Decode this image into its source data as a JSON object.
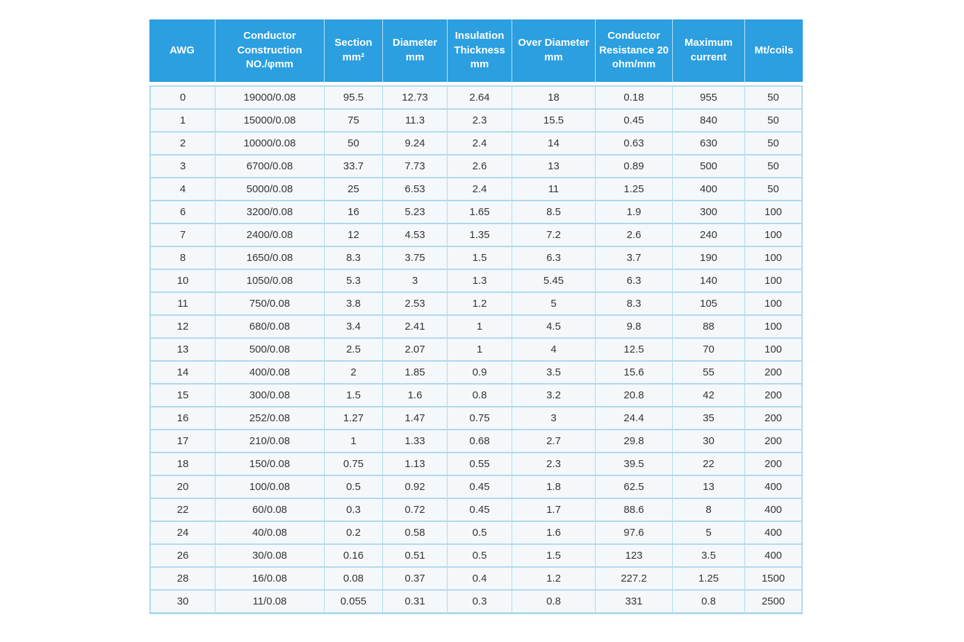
{
  "chart_data": {
    "type": "table",
    "columns": [
      "AWG",
      "Conductor\nConstruction\nNO./φmm",
      "Section\nmm²",
      "Diameter\nmm",
      "Insulation\nThickness\nmm",
      "Over Diameter\nmm",
      "Conductor\nResistance 20\nohm/mm",
      "Maximum\ncurrent",
      "Mt/coils"
    ],
    "rows": [
      [
        "0",
        "19000/0.08",
        "95.5",
        "12.73",
        "2.64",
        "18",
        "0.18",
        "955",
        "50"
      ],
      [
        "1",
        "15000/0.08",
        "75",
        "11.3",
        "2.3",
        "15.5",
        "0.45",
        "840",
        "50"
      ],
      [
        "2",
        "10000/0.08",
        "50",
        "9.24",
        "2.4",
        "14",
        "0.63",
        "630",
        "50"
      ],
      [
        "3",
        "6700/0.08",
        "33.7",
        "7.73",
        "2.6",
        "13",
        "0.89",
        "500",
        "50"
      ],
      [
        "4",
        "5000/0.08",
        "25",
        "6.53",
        "2.4",
        "11",
        "1.25",
        "400",
        "50"
      ],
      [
        "6",
        "3200/0.08",
        "16",
        "5.23",
        "1.65",
        "8.5",
        "1.9",
        "300",
        "100"
      ],
      [
        "7",
        "2400/0.08",
        "12",
        "4.53",
        "1.35",
        "7.2",
        "2.6",
        "240",
        "100"
      ],
      [
        "8",
        "1650/0.08",
        "8.3",
        "3.75",
        "1.5",
        "6.3",
        "3.7",
        "190",
        "100"
      ],
      [
        "10",
        "1050/0.08",
        "5.3",
        "3",
        "1.3",
        "5.45",
        "6.3",
        "140",
        "100"
      ],
      [
        "11",
        "750/0.08",
        "3.8",
        "2.53",
        "1.2",
        "5",
        "8.3",
        "105",
        "100"
      ],
      [
        "12",
        "680/0.08",
        "3.4",
        "2.41",
        "1",
        "4.5",
        "9.8",
        "88",
        "100"
      ],
      [
        "13",
        "500/0.08",
        "2.5",
        "2.07",
        "1",
        "4",
        "12.5",
        "70",
        "100"
      ],
      [
        "14",
        "400/0.08",
        "2",
        "1.85",
        "0.9",
        "3.5",
        "15.6",
        "55",
        "200"
      ],
      [
        "15",
        "300/0.08",
        "1.5",
        "1.6",
        "0.8",
        "3.2",
        "20.8",
        "42",
        "200"
      ],
      [
        "16",
        "252/0.08",
        "1.27",
        "1.47",
        "0.75",
        "3",
        "24.4",
        "35",
        "200"
      ],
      [
        "17",
        "210/0.08",
        "1",
        "1.33",
        "0.68",
        "2.7",
        "29.8",
        "30",
        "200"
      ],
      [
        "18",
        "150/0.08",
        "0.75",
        "1.13",
        "0.55",
        "2.3",
        "39.5",
        "22",
        "200"
      ],
      [
        "20",
        "100/0.08",
        "0.5",
        "0.92",
        "0.45",
        "1.8",
        "62.5",
        "13",
        "400"
      ],
      [
        "22",
        "60/0.08",
        "0.3",
        "0.72",
        "0.45",
        "1.7",
        "88.6",
        "8",
        "400"
      ],
      [
        "24",
        "40/0.08",
        "0.2",
        "0.58",
        "0.5",
        "1.6",
        "97.6",
        "5",
        "400"
      ],
      [
        "26",
        "30/0.08",
        "0.16",
        "0.51",
        "0.5",
        "1.5",
        "123",
        "3.5",
        "400"
      ],
      [
        "28",
        "16/0.08",
        "0.08",
        "0.37",
        "0.4",
        "1.2",
        "227.2",
        "1.25",
        "1500"
      ],
      [
        "30",
        "11/0.08",
        "0.055",
        "0.31",
        "0.3",
        "0.8",
        "331",
        "0.8",
        "2500"
      ]
    ]
  },
  "colors": {
    "header_bg": "#2b9fe0",
    "header_text": "#ffffff",
    "grid_border": "#aed9ef",
    "row_bg": "#f4f8fb",
    "body_text": "#333333",
    "page_bg": "#ffffff"
  }
}
